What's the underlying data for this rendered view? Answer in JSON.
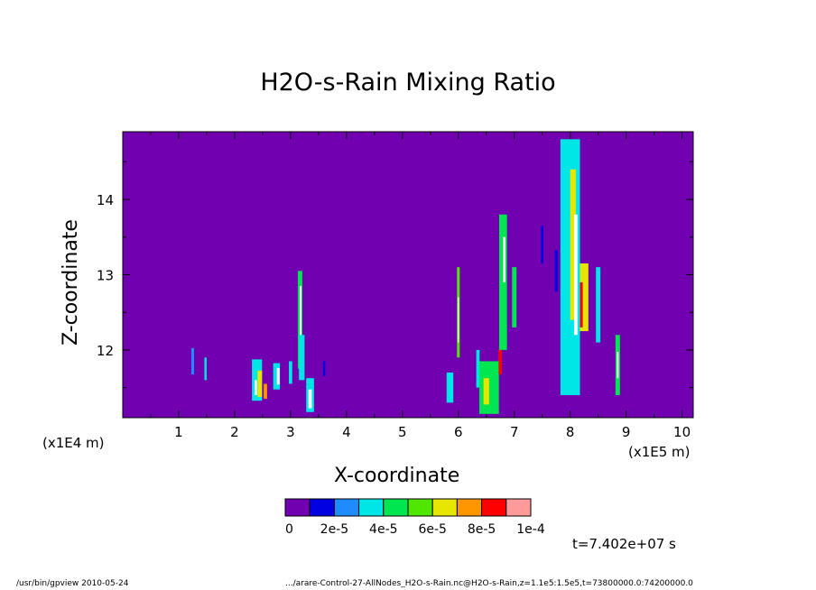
{
  "chart_data": {
    "type": "heatmap",
    "title": "H2O-s-Rain Mixing Ratio",
    "xlabel": "X-coordinate",
    "ylabel": "Z-coordinate",
    "x_unit": "(x1E5 m)",
    "y_unit": "(x1E4 m)",
    "xlim": [
      0,
      10.2
    ],
    "ylim": [
      11.1,
      14.9
    ],
    "x_ticks": [
      "1",
      "2",
      "3",
      "4",
      "5",
      "6",
      "7",
      "8",
      "9",
      "10"
    ],
    "y_ticks": [
      "12",
      "13",
      "14"
    ],
    "colorbar": {
      "range": [
        0,
        0.0001
      ],
      "colors": [
        "#7000b0",
        "#0000e0",
        "#1e8cff",
        "#00e6e6",
        "#00e650",
        "#50e600",
        "#e6e600",
        "#ff9600",
        "#ff0000",
        "#ff9a9a"
      ],
      "labels": [
        "0",
        "2e-5",
        "4e-5",
        "6e-5",
        "8e-5",
        "1e-4"
      ]
    },
    "cells": [
      {
        "x": 1.25,
        "z": 11.85,
        "w": 0.05,
        "h": 0.35,
        "c": 2
      },
      {
        "x": 1.48,
        "z": 11.75,
        "w": 0.04,
        "h": 0.3,
        "c": 3
      },
      {
        "x": 2.4,
        "z": 11.6,
        "w": 0.18,
        "h": 0.55,
        "c": 3
      },
      {
        "x": 2.45,
        "z": 11.55,
        "w": 0.08,
        "h": 0.35,
        "c": 6
      },
      {
        "x": 2.38,
        "z": 11.5,
        "w": 0.04,
        "h": 0.2,
        "c": 9
      },
      {
        "x": 2.55,
        "z": 11.45,
        "w": 0.06,
        "h": 0.2,
        "c": 7
      },
      {
        "x": 2.75,
        "z": 11.65,
        "w": 0.12,
        "h": 0.35,
        "c": 3
      },
      {
        "x": 2.78,
        "z": 11.65,
        "w": 0.05,
        "h": 0.22,
        "c": 9
      },
      {
        "x": 3.0,
        "z": 11.7,
        "w": 0.06,
        "h": 0.3,
        "c": 3
      },
      {
        "x": 3.17,
        "z": 12.4,
        "w": 0.08,
        "h": 1.3,
        "c": 4
      },
      {
        "x": 3.18,
        "z": 12.5,
        "w": 0.03,
        "h": 0.7,
        "c": 9
      },
      {
        "x": 3.2,
        "z": 11.9,
        "w": 0.1,
        "h": 0.6,
        "c": 3
      },
      {
        "x": 3.35,
        "z": 11.4,
        "w": 0.14,
        "h": 0.45,
        "c": 3
      },
      {
        "x": 3.35,
        "z": 11.35,
        "w": 0.06,
        "h": 0.25,
        "c": 9
      },
      {
        "x": 3.6,
        "z": 11.75,
        "w": 0.04,
        "h": 0.2,
        "c": 1
      },
      {
        "x": 5.85,
        "z": 11.5,
        "w": 0.12,
        "h": 0.4,
        "c": 3
      },
      {
        "x": 6.0,
        "z": 12.5,
        "w": 0.05,
        "h": 1.2,
        "c": 5
      },
      {
        "x": 6.0,
        "z": 12.4,
        "w": 0.02,
        "h": 0.6,
        "c": 9
      },
      {
        "x": 6.35,
        "z": 11.75,
        "w": 0.06,
        "h": 0.5,
        "c": 3
      },
      {
        "x": 6.55,
        "z": 11.5,
        "w": 0.35,
        "h": 0.7,
        "c": 4
      },
      {
        "x": 6.5,
        "z": 11.45,
        "w": 0.1,
        "h": 0.35,
        "c": 6
      },
      {
        "x": 6.75,
        "z": 11.85,
        "w": 0.06,
        "h": 0.35,
        "c": 8
      },
      {
        "x": 6.8,
        "z": 12.9,
        "w": 0.14,
        "h": 1.8,
        "c": 4
      },
      {
        "x": 6.82,
        "z": 13.2,
        "w": 0.04,
        "h": 0.6,
        "c": 9
      },
      {
        "x": 7.0,
        "z": 12.7,
        "w": 0.08,
        "h": 0.8,
        "c": 4
      },
      {
        "x": 7.5,
        "z": 13.4,
        "w": 0.04,
        "h": 0.5,
        "c": 1
      },
      {
        "x": 7.75,
        "z": 13.05,
        "w": 0.05,
        "h": 0.55,
        "c": 1
      },
      {
        "x": 8.0,
        "z": 13.1,
        "w": 0.35,
        "h": 3.4,
        "c": 3
      },
      {
        "x": 8.05,
        "z": 13.4,
        "w": 0.1,
        "h": 2.0,
        "c": 6
      },
      {
        "x": 8.1,
        "z": 13.0,
        "w": 0.06,
        "h": 1.6,
        "c": 9
      },
      {
        "x": 8.25,
        "z": 12.7,
        "w": 0.15,
        "h": 0.9,
        "c": 6
      },
      {
        "x": 8.2,
        "z": 12.6,
        "w": 0.05,
        "h": 0.6,
        "c": 8
      },
      {
        "x": 8.5,
        "z": 12.6,
        "w": 0.08,
        "h": 1.0,
        "c": 3
      },
      {
        "x": 8.85,
        "z": 11.8,
        "w": 0.08,
        "h": 0.8,
        "c": 4
      },
      {
        "x": 8.85,
        "z": 11.8,
        "w": 0.03,
        "h": 0.35,
        "c": 9
      }
    ]
  },
  "annotations": {
    "time": "t=7.402e+07 s",
    "footer_left": "/usr/bin/gpview   2010-05-24",
    "footer_right": ".../arare-Control-27-AllNodes_H2O-s-Rain.nc@H2O-s-Rain,z=1.1e5:1.5e5,t=73800000.0:74200000.0"
  }
}
